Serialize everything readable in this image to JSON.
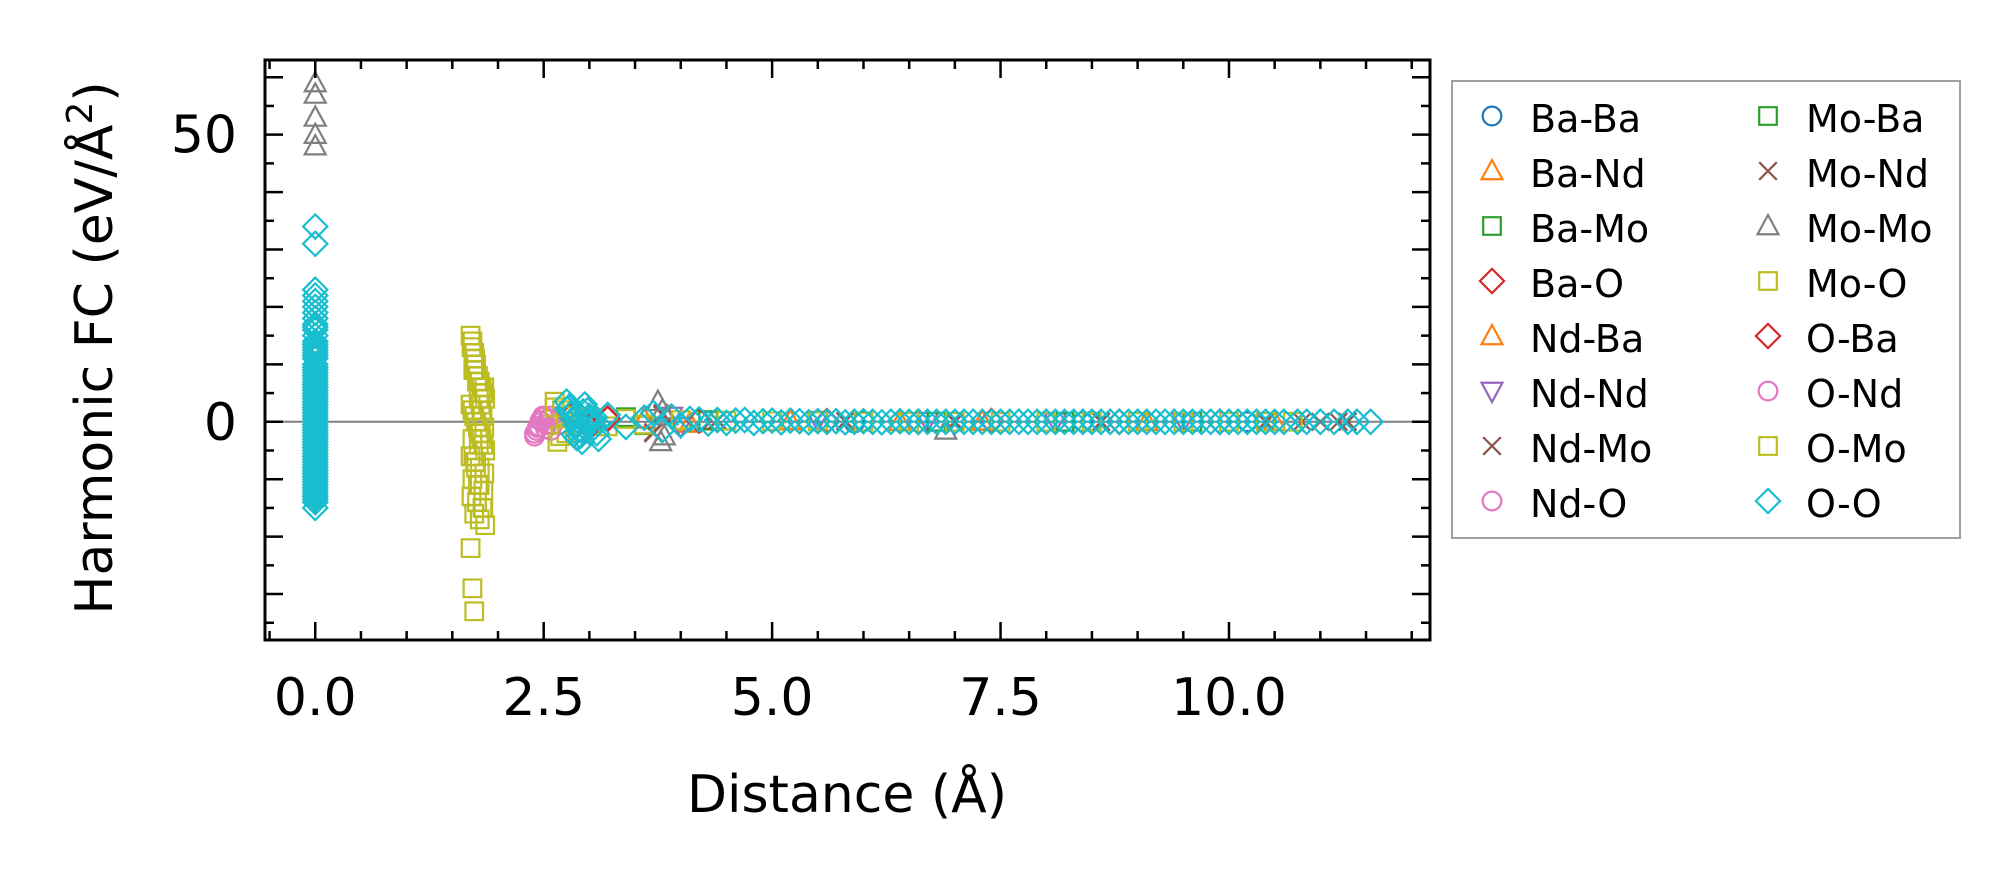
{
  "chart_data": {
    "type": "scatter",
    "title": "",
    "xlabel": "Distance (Å)",
    "ylabel_main": "Harmonic FC (eV/Å",
    "ylabel_sup": "2",
    "ylabel_close": ")",
    "xlim": [
      -0.55,
      12.2
    ],
    "ylim": [
      -38,
      63
    ],
    "x_ticks": [
      0.0,
      2.5,
      5.0,
      7.5,
      10.0
    ],
    "x_tick_labels": [
      "0.0",
      "2.5",
      "5.0",
      "7.5",
      "10.0"
    ],
    "y_ticks": [
      0,
      50
    ],
    "y_tick_labels": [
      "0",
      "50"
    ],
    "zero_line": true,
    "grid": false,
    "legend_position": "outside-right",
    "legend_columns": 2,
    "series": [
      {
        "name": "Ba-Ba",
        "marker": "circle",
        "color": "#1f77b4",
        "x": [
          4.2,
          5.9,
          6.0,
          8.4,
          8.5,
          10.2
        ],
        "y": [
          0.3,
          -0.2,
          0.1,
          0.0,
          0.1,
          0.0
        ]
      },
      {
        "name": "Ba-Nd",
        "marker": "triangle-up",
        "color": "#ff7f0e",
        "x": [
          3.6,
          4.1,
          5.2,
          6.4,
          7.3,
          9.1,
          10.5
        ],
        "y": [
          0.5,
          -0.3,
          0.2,
          0.0,
          0.1,
          0.0,
          0.0
        ]
      },
      {
        "name": "Ba-Mo",
        "marker": "square",
        "color": "#2ca02c",
        "x": [
          3.4,
          3.6,
          4.3,
          5.5,
          6.8,
          8.2,
          9.6
        ],
        "y": [
          0.8,
          -0.6,
          0.3,
          0.1,
          0.0,
          0.0,
          0.0
        ]
      },
      {
        "name": "Ba-O",
        "marker": "diamond",
        "color": "#d62728",
        "x": [
          2.8,
          3.0,
          3.2,
          4.2,
          5.6,
          6.6,
          7.4,
          8.8,
          9.9
        ],
        "y": [
          1.2,
          -1.0,
          0.6,
          0.2,
          0.1,
          0.0,
          0.1,
          0.0,
          0.0
        ]
      },
      {
        "name": "Nd-Ba",
        "marker": "triangle-up",
        "color": "#ff7f0e",
        "x": [
          3.6,
          4.1,
          5.2,
          6.4,
          7.3,
          9.1
        ],
        "y": [
          0.4,
          -0.2,
          0.1,
          0.0,
          0.0,
          0.0
        ]
      },
      {
        "name": "Nd-Nd",
        "marker": "triangle-down",
        "color": "#9467bd",
        "x": [
          3.9,
          4.0,
          5.5,
          6.7,
          8.1,
          9.5
        ],
        "y": [
          1.0,
          -0.8,
          0.3,
          0.1,
          0.0,
          0.0
        ]
      },
      {
        "name": "Nd-Mo",
        "marker": "x",
        "color": "#8c564b",
        "x": [
          3.7,
          3.8,
          4.4,
          5.8,
          7.0,
          8.6,
          10.8,
          11.2
        ],
        "y": [
          -2.0,
          1.5,
          0.3,
          0.1,
          0.0,
          0.0,
          0.0,
          0.0
        ]
      },
      {
        "name": "Nd-O",
        "marker": "circle",
        "color": "#e377c2",
        "x": [
          2.4,
          2.42,
          2.45,
          2.48,
          2.5,
          2.52,
          2.55,
          2.58,
          2.6
        ],
        "y": [
          -2.5,
          -1.5,
          -0.8,
          0.0,
          0.8,
          -1.2,
          0.5,
          1.0,
          -0.5
        ]
      },
      {
        "name": "Mo-Ba",
        "marker": "square",
        "color": "#2ca02c",
        "x": [
          3.4,
          3.6,
          4.3,
          5.5,
          6.8,
          8.2
        ],
        "y": [
          0.6,
          -0.5,
          0.2,
          0.1,
          0.0,
          0.0
        ]
      },
      {
        "name": "Mo-Nd",
        "marker": "x",
        "color": "#8c564b",
        "x": [
          3.7,
          3.8,
          4.4,
          5.8,
          7.0,
          8.6,
          10.4,
          11.0,
          11.3
        ],
        "y": [
          -1.8,
          1.2,
          0.2,
          0.1,
          0.0,
          0.0,
          0.0,
          0.0,
          0.0
        ]
      },
      {
        "name": "Mo-Mo",
        "marker": "triangle-up",
        "color": "#7f7f7f",
        "x": [
          0.0,
          0.0,
          0.0,
          0.0,
          0.0,
          3.75,
          3.78,
          3.8,
          3.82,
          3.85,
          6.9
        ],
        "y": [
          59,
          57,
          53,
          50,
          48,
          3.5,
          -3.5,
          2.0,
          -2.5,
          1.0,
          -1.5
        ]
      },
      {
        "name": "Mo-O",
        "marker": "square",
        "color": "#bcbd22",
        "x": [
          1.7,
          1.72,
          1.74,
          1.76,
          1.78,
          1.8,
          1.82,
          1.84,
          1.86,
          1.7,
          1.72,
          1.74,
          1.76,
          1.78,
          1.8,
          1.82,
          1.84,
          1.86,
          1.7,
          1.75,
          1.8,
          1.85,
          1.72,
          1.78,
          1.84,
          1.71,
          1.77,
          1.83,
          1.74,
          1.8,
          1.86,
          1.73,
          1.79,
          1.85,
          1.76,
          1.82,
          1.75,
          1.81,
          1.73,
          1.79,
          1.7,
          1.72,
          1.74,
          2.62,
          2.65,
          2.7,
          2.75,
          2.8,
          3.0,
          3.2,
          3.4,
          3.6,
          4.0,
          4.5,
          5.0,
          5.5,
          6.0,
          6.5,
          7.0,
          7.5,
          8.0,
          8.5,
          9.0,
          9.5,
          10.0,
          10.4,
          10.7
        ],
        "y": [
          15,
          14,
          12,
          10,
          8,
          7,
          6,
          5,
          4,
          3,
          2,
          1,
          0,
          -1,
          -2,
          -3,
          -4,
          -5,
          -6,
          -7,
          -8,
          -9,
          -10,
          -11,
          -12,
          -13,
          -14,
          -15,
          -16,
          -17,
          -18,
          9,
          -4,
          6,
          -8,
          2,
          11,
          -2,
          -6,
          4,
          -22,
          -29,
          -33,
          3.5,
          -3.5,
          2,
          -2,
          1,
          0.8,
          -0.8,
          0.5,
          -0.5,
          0.3,
          0.2,
          0.1,
          0.1,
          0.0,
          0.0,
          0.0,
          0.0,
          0.0,
          0.0,
          0.0,
          0.0,
          0.0,
          0.0,
          0.0
        ]
      },
      {
        "name": "O-Ba",
        "marker": "diamond",
        "color": "#d62728",
        "x": [
          2.8,
          3.0,
          3.2,
          4.2,
          5.6,
          6.6,
          7.4,
          8.8,
          9.9
        ],
        "y": [
          1.0,
          -0.8,
          0.5,
          0.2,
          0.1,
          0.0,
          0.1,
          0.0,
          0.0
        ]
      },
      {
        "name": "O-Nd",
        "marker": "circle",
        "color": "#e377c2",
        "x": [
          2.4,
          2.43,
          2.46,
          2.49,
          2.52,
          2.55,
          2.58
        ],
        "y": [
          -2.0,
          -1.0,
          0.2,
          1.0,
          -0.5,
          0.6,
          -1.5
        ]
      },
      {
        "name": "O-Mo",
        "marker": "square",
        "color": "#bcbd22",
        "x": [
          1.71,
          1.73,
          1.75,
          1.77,
          1.79,
          1.81,
          1.83,
          1.85,
          1.72,
          1.76,
          1.8,
          1.84,
          2.62,
          2.68,
          2.74
        ],
        "y": [
          13,
          11,
          9,
          7,
          5,
          3,
          1,
          -1,
          -3,
          -7,
          -11,
          -15,
          2.5,
          -2.5,
          1.0
        ]
      },
      {
        "name": "O-O",
        "marker": "diamond",
        "color": "#17becf",
        "x": [
          0.0,
          0.0,
          0.0,
          0.0,
          0.0,
          0.0,
          0.0,
          0.0,
          0.0,
          0.0,
          0.0,
          0.0,
          0.0,
          0.0,
          0.0,
          0.0,
          0.0,
          0.0,
          0.0,
          0.0,
          0.0,
          0.0,
          0.0,
          0.0,
          0.0,
          0.0,
          0.0,
          0.0,
          0.0,
          0.0,
          0.0,
          0.0,
          0.0,
          0.0,
          0.0,
          0.0,
          0.0,
          0.0,
          0.0,
          0.0,
          0.0,
          0.0,
          0.0,
          0.0,
          0.0,
          0.0,
          0.0,
          0.0,
          0.0,
          0.0,
          0.0,
          0.0,
          0.0,
          0.0,
          0.0,
          0.0,
          0.0,
          0.0,
          0.0,
          0.0,
          0.0,
          0.0,
          0.0,
          0.0,
          0.0,
          0.0,
          0.0,
          0.0,
          0.0,
          2.75,
          2.78,
          2.8,
          2.82,
          2.85,
          2.88,
          2.9,
          2.92,
          2.95,
          2.98,
          3.0,
          3.02,
          3.05,
          3.08,
          3.1,
          2.76,
          2.83,
          2.89,
          2.96,
          3.03,
          3.09,
          2.79,
          2.86,
          2.93,
          3.0,
          3.06,
          2.81,
          2.91,
          3.01,
          2.87,
          2.97,
          3.2,
          3.4,
          3.6,
          3.7,
          3.8,
          3.9,
          4.0,
          4.1,
          4.2,
          4.3,
          4.4,
          4.5,
          4.6,
          4.7,
          4.8,
          4.9,
          5.0,
          5.1,
          5.2,
          5.3,
          5.4,
          5.5,
          5.6,
          5.7,
          5.8,
          5.9,
          6.0,
          6.1,
          6.2,
          6.3,
          6.4,
          6.5,
          6.6,
          6.7,
          6.8,
          6.9,
          7.0,
          7.1,
          7.2,
          7.3,
          7.4,
          7.5,
          7.6,
          7.7,
          7.8,
          7.9,
          8.0,
          8.1,
          8.2,
          8.3,
          8.4,
          8.5,
          8.6,
          8.7,
          8.8,
          8.9,
          9.0,
          9.1,
          9.2,
          9.3,
          9.4,
          9.5,
          9.6,
          9.7,
          9.8,
          9.9,
          10.0,
          10.1,
          10.2,
          10.3,
          10.4,
          10.5,
          10.6,
          10.75,
          10.85,
          11.0,
          11.15,
          11.3,
          11.4,
          11.55
        ],
        "y": [
          34,
          31,
          23,
          22,
          21,
          20,
          19,
          18,
          17,
          16,
          15,
          14,
          13,
          12,
          11,
          10,
          9,
          8,
          7,
          6,
          5,
          4,
          3,
          2,
          1,
          0,
          -1,
          -2,
          -3,
          -4,
          -5,
          -6,
          -7,
          -8,
          -9,
          -10,
          -11,
          -12,
          -13,
          -14,
          -15,
          16.5,
          13.5,
          12.5,
          11.5,
          9.5,
          8.5,
          7.5,
          6.5,
          5.5,
          4.5,
          3.5,
          2.5,
          1.5,
          0.5,
          -0.5,
          -1.5,
          -2.5,
          -3.5,
          -4.5,
          -5.5,
          -6.5,
          -7.5,
          -8.5,
          -9.5,
          -10.5,
          -11.5,
          -12.5,
          -13.5,
          3.5,
          2.5,
          1.5,
          0.5,
          -0.5,
          -1.5,
          -2.5,
          -3.5,
          3.0,
          2.0,
          1.0,
          0.0,
          -1.0,
          -2.0,
          -3.0,
          2.2,
          -2.2,
          1.2,
          -1.2,
          0.3,
          -0.3,
          2.8,
          -2.8,
          1.8,
          -1.8,
          0.8,
          1.5,
          -1.5,
          0.6,
          -0.6,
          0.2,
          1.2,
          -0.9,
          0.7,
          1.5,
          -1.4,
          0.9,
          -0.6,
          0.5,
          0.4,
          -0.3,
          0.3,
          -0.2,
          0.2,
          0.3,
          -0.2,
          0.1,
          0.2,
          -0.1,
          0.2,
          0.1,
          -0.1,
          0.1,
          0.0,
          0.1,
          -0.1,
          0.0,
          0.1,
          0.0,
          -0.1,
          0.0,
          0.1,
          0.0,
          0.0,
          0.0,
          0.0,
          0.0,
          0.0,
          0.0,
          0.0,
          0.0,
          0.0,
          0.0,
          0.0,
          0.0,
          0.0,
          0.0,
          0.0,
          0.0,
          0.0,
          0.0,
          0.0,
          0.0,
          0.0,
          0.0,
          0.0,
          0.0,
          0.0,
          0.0,
          0.0,
          0.0,
          0.0,
          0.0,
          0.0,
          0.0,
          0.0,
          0.0,
          0.0,
          0.0,
          0.0,
          0.0,
          0.0,
          0.0,
          0.0,
          0.0,
          0.0,
          0.0,
          0.0,
          0.0,
          0.0,
          0.0
        ]
      }
    ]
  }
}
